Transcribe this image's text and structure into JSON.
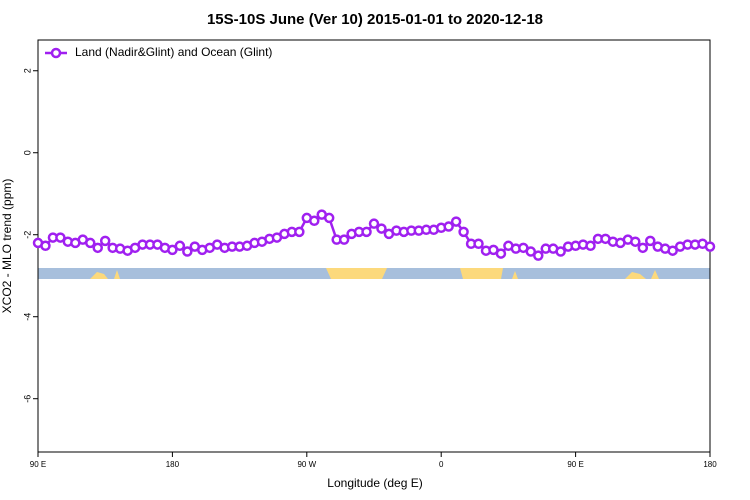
{
  "chart_data": {
    "type": "line",
    "title": "15S-10S June (Ver 10)   2015-01-01 to 2020-12-18",
    "xlabel": "Longitude (deg E)",
    "ylabel": "XCO2 - MLO trend (ppm)",
    "legend": "topleft",
    "x": [
      90,
      95,
      100,
      105,
      110,
      115,
      120,
      125,
      130,
      135,
      140,
      145,
      150,
      155,
      160,
      165,
      170,
      175,
      180,
      185,
      190,
      195,
      200,
      205,
      210,
      215,
      220,
      225,
      230,
      235,
      240,
      245,
      250,
      255,
      260,
      265,
      270,
      275,
      280,
      285,
      290,
      295,
      300,
      305,
      310,
      315,
      320,
      325,
      330,
      335,
      340,
      345,
      350,
      355,
      360,
      365,
      370,
      375,
      380,
      385,
      390,
      395,
      400,
      405,
      410,
      415,
      420,
      425,
      430,
      435,
      440,
      445,
      450,
      455,
      460,
      465,
      470,
      475,
      480,
      485,
      490,
      495,
      500,
      505,
      510,
      515,
      520,
      525,
      530,
      535,
      540
    ],
    "series": [
      {
        "name": "Land (Nadir&Glint) and Ocean (Glint)",
        "color": "#a020f0",
        "values": [
          -2.2,
          -2.27,
          -2.07,
          -2.07,
          -2.17,
          -2.2,
          -2.12,
          -2.2,
          -2.32,
          -2.15,
          -2.32,
          -2.34,
          -2.39,
          -2.32,
          -2.24,
          -2.24,
          -2.24,
          -2.32,
          -2.37,
          -2.27,
          -2.41,
          -2.29,
          -2.37,
          -2.32,
          -2.24,
          -2.32,
          -2.29,
          -2.29,
          -2.27,
          -2.2,
          -2.17,
          -2.1,
          -2.07,
          -1.98,
          -1.93,
          -1.93,
          -1.59,
          -1.66,
          -1.51,
          -1.59,
          -2.12,
          -2.12,
          -1.98,
          -1.93,
          -1.93,
          -1.73,
          -1.85,
          -1.98,
          -1.9,
          -1.93,
          -1.9,
          -1.9,
          -1.88,
          -1.88,
          -1.83,
          -1.8,
          -1.68,
          -1.93,
          -2.22,
          -2.22,
          -2.39,
          -2.37,
          -2.46,
          -2.27,
          -2.34,
          -2.32,
          -2.41,
          -2.51,
          -2.34,
          -2.34,
          -2.41,
          -2.29,
          -2.27,
          -2.24,
          -2.27,
          -2.1,
          -2.1,
          -2.17,
          -2.2,
          -2.12,
          -2.17,
          -2.32,
          -2.15,
          -2.29,
          -2.34,
          -2.39,
          -2.29,
          -2.24,
          -2.24,
          -2.22,
          -2.29
        ]
      }
    ],
    "xlim": [
      90,
      540
    ],
    "xticks": [
      {
        "value": 90,
        "label": "90 E"
      },
      180,
      {
        "value": 270,
        "label": "90 W"
      },
      {
        "value": 360,
        "label": "0"
      },
      {
        "value": 450,
        "label": "90 E"
      },
      {
        "value": 540,
        "label": "180"
      }
    ],
    "ylim": [
      -7.3,
      2.75
    ],
    "yticks": [
      2,
      0,
      -2,
      -4,
      -6
    ]
  }
}
